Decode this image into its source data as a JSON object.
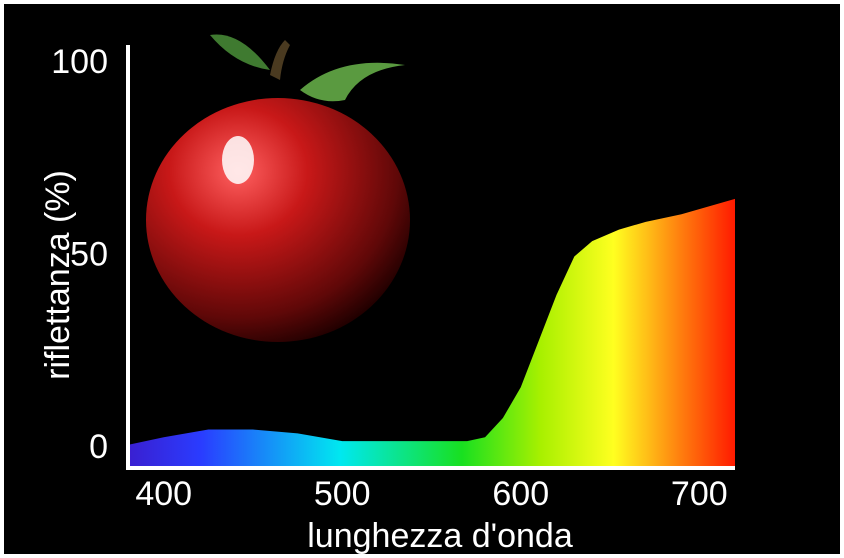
{
  "chart_data": {
    "type": "area",
    "x_label": "lunghezza d'onda",
    "y_label": "riflettanza (%)",
    "x": [
      380,
      400,
      425,
      450,
      475,
      500,
      525,
      550,
      570,
      580,
      590,
      600,
      610,
      620,
      630,
      640,
      655,
      670,
      690,
      720
    ],
    "values": [
      1,
      3,
      5,
      5,
      4,
      2,
      2,
      2,
      2,
      3,
      8,
      16,
      28,
      40,
      50,
      54,
      57,
      59,
      61,
      65
    ],
    "xlim": [
      380,
      720
    ],
    "ylim": [
      -5,
      105
    ],
    "xticks": [
      400,
      500,
      600,
      700
    ],
    "yticks": [
      0,
      50,
      100
    ],
    "axis_color": "#ffffff"
  }
}
